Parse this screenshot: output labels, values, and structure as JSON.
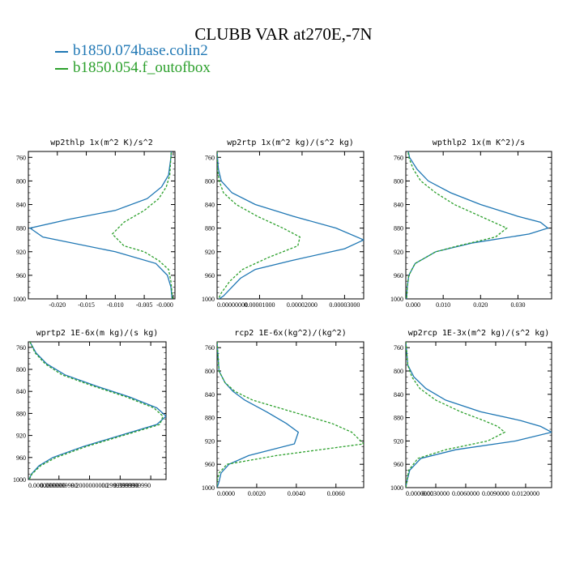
{
  "title": "CLUBB VAR at270E,-7N",
  "legend": [
    {
      "name": "b1850.074base.colin2",
      "color": "#1f77b4",
      "dash": "solid"
    },
    {
      "name": "b1850.054.f_outofbox",
      "color": "#2ca02c",
      "dash": "dashed"
    }
  ],
  "chart_data": [
    {
      "type": "line",
      "title": "wp2thlp  1x(m^2 K)/s^2",
      "ylim": [
        1000,
        750
      ],
      "y_ticks": [
        "760",
        "800",
        "840",
        "880",
        "920",
        "960",
        "1000"
      ],
      "xlim": [
        -0.025,
        0.0003
      ],
      "x_ticks": [
        "-0.020",
        "-0.015",
        "-0.010",
        "-0.005",
        "-0.000"
      ],
      "series": [
        {
          "name": "b1850.074base.colin2",
          "y": [
            745,
            760,
            790,
            810,
            830,
            850,
            865,
            880,
            895,
            920,
            940,
            960,
            980,
            1000
          ],
          "x": [
            -0.0003,
            -0.0004,
            -0.0008,
            -0.002,
            -0.0045,
            -0.01,
            -0.018,
            -0.0247,
            -0.0225,
            -0.01,
            -0.003,
            -0.001,
            -0.0004,
            -0.0002
          ]
        },
        {
          "name": "b1850.054.f_outofbox",
          "y": [
            745,
            760,
            790,
            810,
            830,
            850,
            870,
            890,
            910,
            920,
            935,
            950,
            970,
            990,
            1000
          ],
          "x": [
            -0.0003,
            -0.0004,
            -0.0006,
            -0.0012,
            -0.0025,
            -0.005,
            -0.0085,
            -0.0105,
            -0.0085,
            -0.005,
            -0.0025,
            -0.0008,
            -0.0004,
            -0.0002,
            -0.0001
          ]
        }
      ]
    },
    {
      "type": "line",
      "title": "wp2rtp  1x(m^2 kg)/(s^2 kg)",
      "ylim": [
        1000,
        750
      ],
      "y_ticks": [
        "760",
        "800",
        "840",
        "880",
        "920",
        "960",
        "1000"
      ],
      "xlim": [
        0,
        3.45e-05
      ],
      "x_ticks": [
        "0.00000000",
        "0.00001000",
        "0.00002000",
        "0.00003000"
      ],
      "series": [
        {
          "name": "b1850.074base.colin2",
          "y": [
            750,
            780,
            800,
            820,
            840,
            860,
            880,
            900,
            915,
            935,
            950,
            965,
            980,
            995,
            1000
          ],
          "x": [
            0,
            3e-07,
            1e-06,
            3.5e-06,
            9e-06,
            1.8e-05,
            2.8e-05,
            3.45e-05,
            3e-05,
            1.75e-05,
            9e-06,
            5.5e-06,
            3.5e-06,
            1.5e-06,
            5e-07
          ]
        },
        {
          "name": "b1850.054.f_outofbox",
          "y": [
            750,
            780,
            800,
            820,
            840,
            860,
            880,
            895,
            910,
            930,
            950,
            970,
            990,
            1000
          ],
          "x": [
            0,
            1e-07,
            5e-07,
            1.5e-06,
            4.5e-06,
            9.5e-06,
            1.55e-05,
            1.95e-05,
            1.9e-05,
            1.2e-05,
            6e-06,
            3e-06,
            1e-06,
            3e-07
          ]
        }
      ]
    },
    {
      "type": "line",
      "title": "wpthlp2  1x(m K^2)/s",
      "ylim": [
        1000,
        750
      ],
      "y_ticks": [
        "760",
        "800",
        "840",
        "880",
        "920",
        "960",
        "1000"
      ],
      "xlim": [
        0,
        0.039
      ],
      "x_ticks": [
        "0.000",
        "0.010",
        "0.020",
        "0.030"
      ],
      "series": [
        {
          "name": "b1850.074base.colin2",
          "y": [
            745,
            760,
            780,
            800,
            820,
            840,
            860,
            870,
            880,
            890,
            905,
            920,
            940,
            960,
            980,
            1000
          ],
          "x": [
            0.0005,
            0.001,
            0.003,
            0.006,
            0.012,
            0.02,
            0.03,
            0.036,
            0.038,
            0.033,
            0.018,
            0.008,
            0.0025,
            0.0008,
            0.0004,
            0.0002
          ]
        },
        {
          "name": "b1850.054.f_outofbox",
          "y": [
            745,
            760,
            780,
            800,
            820,
            840,
            860,
            880,
            895,
            910,
            920,
            940,
            960,
            980,
            1000
          ],
          "x": [
            0.0005,
            0.0008,
            0.002,
            0.004,
            0.008,
            0.013,
            0.02,
            0.027,
            0.024,
            0.014,
            0.008,
            0.0025,
            0.0008,
            0.0004,
            0.0002
          ]
        }
      ]
    },
    {
      "type": "line",
      "title": "wprtp2  1E-6x(m kg)/(s kg)",
      "ylim": [
        1000,
        750
      ],
      "y_ticks": [
        "760",
        "800",
        "840",
        "880",
        "920",
        "960",
        "1000"
      ],
      "xlim": [
        0,
        0.45
      ],
      "x_ticks": [
        "0.0000000000",
        "0.0999999990",
        "0.2000000000",
        "0.2999999990",
        "0.3999999990"
      ],
      "series": [
        {
          "name": "b1850.074base.colin2",
          "y": [
            750,
            770,
            790,
            810,
            830,
            850,
            870,
            885,
            900,
            920,
            940,
            960,
            975,
            990,
            1000
          ],
          "x": [
            0.005,
            0.025,
            0.06,
            0.12,
            0.22,
            0.33,
            0.42,
            0.45,
            0.42,
            0.3,
            0.18,
            0.08,
            0.035,
            0.01,
            0.002
          ]
        },
        {
          "name": "b1850.054.f_outofbox",
          "y": [
            750,
            770,
            790,
            810,
            830,
            850,
            870,
            885,
            900,
            920,
            940,
            960,
            975,
            990,
            1000
          ],
          "x": [
            0.005,
            0.022,
            0.055,
            0.11,
            0.21,
            0.32,
            0.41,
            0.44,
            0.43,
            0.31,
            0.19,
            0.09,
            0.04,
            0.012,
            0.003
          ]
        }
      ]
    },
    {
      "type": "line",
      "title": "rcp2  1E-6x(kg^2)/(kg^2)",
      "ylim": [
        1000,
        750
      ],
      "y_ticks": [
        "760",
        "800",
        "840",
        "880",
        "920",
        "960",
        "1000"
      ],
      "xlim": [
        0,
        0.0074
      ],
      "x_ticks": [
        "0.0000",
        "0.0020",
        "0.0040",
        "0.0060"
      ],
      "series": [
        {
          "name": "b1850.074base.colin2",
          "y": [
            750,
            800,
            820,
            835,
            850,
            870,
            890,
            905,
            925,
            945,
            960,
            975,
            990,
            1000
          ],
          "x": [
            0,
            0.0001,
            0.0004,
            0.0008,
            0.0014,
            0.0025,
            0.0035,
            0.0041,
            0.0039,
            0.0016,
            0.0006,
            0.0002,
            0.0001,
            0
          ]
        },
        {
          "name": "b1850.054.f_outofbox",
          "y": [
            750,
            800,
            820,
            835,
            850,
            870,
            890,
            905,
            925,
            945,
            960,
            975,
            990,
            1000
          ],
          "x": [
            0,
            0.0001,
            0.0004,
            0.0009,
            0.0018,
            0.0038,
            0.0058,
            0.0068,
            0.0074,
            0.003,
            0.0005,
            0.0001,
            0,
            0
          ]
        }
      ]
    },
    {
      "type": "line",
      "title": "wp2rcp  1E-3x(m^2 kg)/(s^2 kg)",
      "ylim": [
        1000,
        750
      ],
      "y_ticks": [
        "760",
        "800",
        "840",
        "880",
        "920",
        "960",
        "1000"
      ],
      "xlim": [
        0,
        0.0146
      ],
      "x_ticks": [
        "0.0000000",
        "0.0030000",
        "0.0060000",
        "0.0090000",
        "0.0120000"
      ],
      "series": [
        {
          "name": "b1850.074base.colin2",
          "y": [
            750,
            790,
            810,
            830,
            850,
            870,
            885,
            895,
            905,
            920,
            935,
            950,
            970,
            990,
            1000
          ],
          "x": [
            0,
            0.0002,
            0.0008,
            0.002,
            0.004,
            0.0075,
            0.0115,
            0.0135,
            0.0146,
            0.011,
            0.005,
            0.0015,
            0.0004,
            0.0001,
            0
          ]
        },
        {
          "name": "b1850.054.f_outofbox",
          "y": [
            750,
            790,
            810,
            830,
            850,
            870,
            885,
            895,
            905,
            920,
            935,
            950,
            970,
            990,
            1000
          ],
          "x": [
            0,
            0.0002,
            0.0006,
            0.0014,
            0.003,
            0.0055,
            0.0078,
            0.0092,
            0.0099,
            0.0082,
            0.004,
            0.0012,
            0.0003,
            0.0001,
            0
          ]
        }
      ]
    }
  ]
}
